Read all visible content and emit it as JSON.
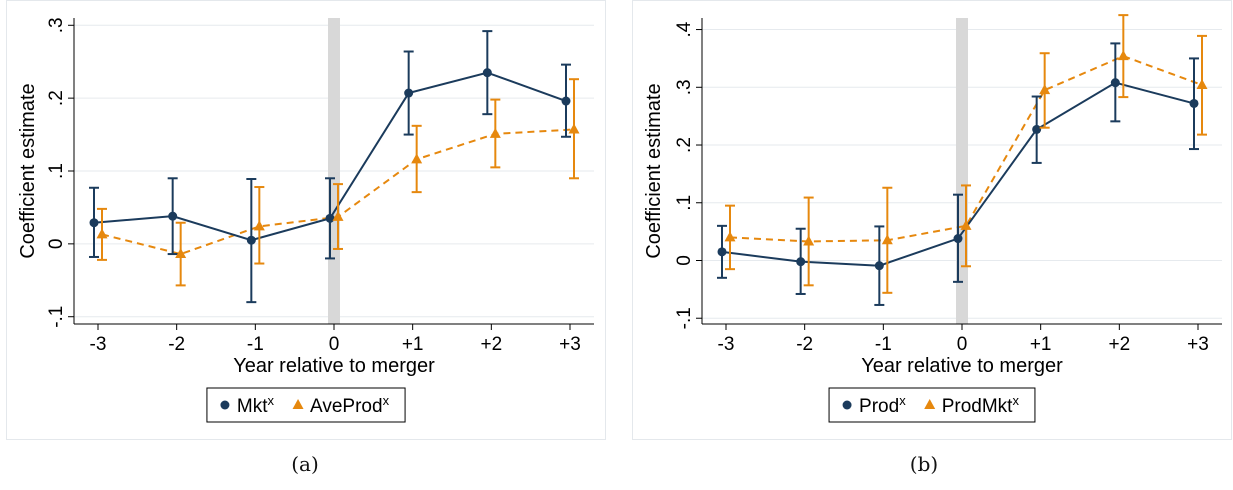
{
  "chart_data": [
    {
      "type": "line",
      "panel_label": "(a)",
      "xlabel": "Year relative to merger",
      "ylabel": "Coefficient estimate",
      "categories": [
        "-3",
        "-2",
        "-1",
        "0",
        "+1",
        "+2",
        "+3"
      ],
      "yticks": [
        ".3",
        ".2",
        ".1",
        "0",
        "-.1"
      ],
      "ylim": [
        -0.11,
        0.31
      ],
      "ytick_values": [
        0.3,
        0.2,
        0.1,
        0,
        -0.1
      ],
      "grid": true,
      "legend_position": "bottom",
      "event_marker": "shaded band at 0",
      "series": [
        {
          "name": "Mkt",
          "name_superscript": "x",
          "color": "#1b3b5c",
          "marker": "circle",
          "line_style": "solid",
          "values": [
            0.029,
            0.038,
            0.005,
            0.035,
            0.207,
            0.235,
            0.196
          ],
          "ci_low": [
            -0.018,
            -0.014,
            -0.08,
            -0.02,
            0.15,
            0.178,
            0.147
          ],
          "ci_high": [
            0.077,
            0.09,
            0.089,
            0.09,
            0.264,
            0.292,
            0.246
          ]
        },
        {
          "name": "AveProd",
          "name_superscript": "x",
          "color": "#e6880e",
          "marker": "triangle",
          "line_style": "dashed",
          "values": [
            0.013,
            -0.014,
            0.024,
            0.037,
            0.116,
            0.151,
            0.157
          ],
          "ci_low": [
            -0.022,
            -0.057,
            -0.027,
            -0.007,
            0.071,
            0.105,
            0.09
          ],
          "ci_high": [
            0.048,
            0.029,
            0.078,
            0.082,
            0.162,
            0.198,
            0.226
          ]
        }
      ]
    },
    {
      "type": "line",
      "panel_label": "(b)",
      "xlabel": "Year relative to merger",
      "ylabel": "Coefficient estimate",
      "categories": [
        "-3",
        "-2",
        "-1",
        "0",
        "+1",
        "+2",
        "+3"
      ],
      "yticks": [
        ".4",
        ".3",
        ".2",
        ".1",
        "0",
        "-.1"
      ],
      "ylim": [
        -0.11,
        0.42
      ],
      "ytick_values": [
        0.4,
        0.3,
        0.2,
        0.1,
        0,
        -0.1
      ],
      "grid": true,
      "legend_position": "bottom",
      "event_marker": "shaded band at 0",
      "series": [
        {
          "name": "Prod",
          "name_superscript": "x",
          "color": "#1b3b5c",
          "marker": "circle",
          "line_style": "solid",
          "values": [
            0.015,
            -0.002,
            -0.009,
            0.038,
            0.227,
            0.308,
            0.272
          ],
          "ci_low": [
            -0.03,
            -0.058,
            -0.077,
            -0.037,
            0.169,
            0.241,
            0.193
          ],
          "ci_high": [
            0.06,
            0.055,
            0.059,
            0.114,
            0.284,
            0.376,
            0.35
          ]
        },
        {
          "name": "ProdMkt",
          "name_superscript": "x",
          "color": "#e6880e",
          "marker": "triangle",
          "line_style": "dashed",
          "values": [
            0.04,
            0.033,
            0.035,
            0.06,
            0.295,
            0.354,
            0.304
          ],
          "ci_low": [
            -0.015,
            -0.043,
            -0.056,
            -0.01,
            0.23,
            0.283,
            0.218
          ],
          "ci_high": [
            0.095,
            0.109,
            0.126,
            0.13,
            0.359,
            0.425,
            0.389
          ]
        }
      ]
    }
  ]
}
